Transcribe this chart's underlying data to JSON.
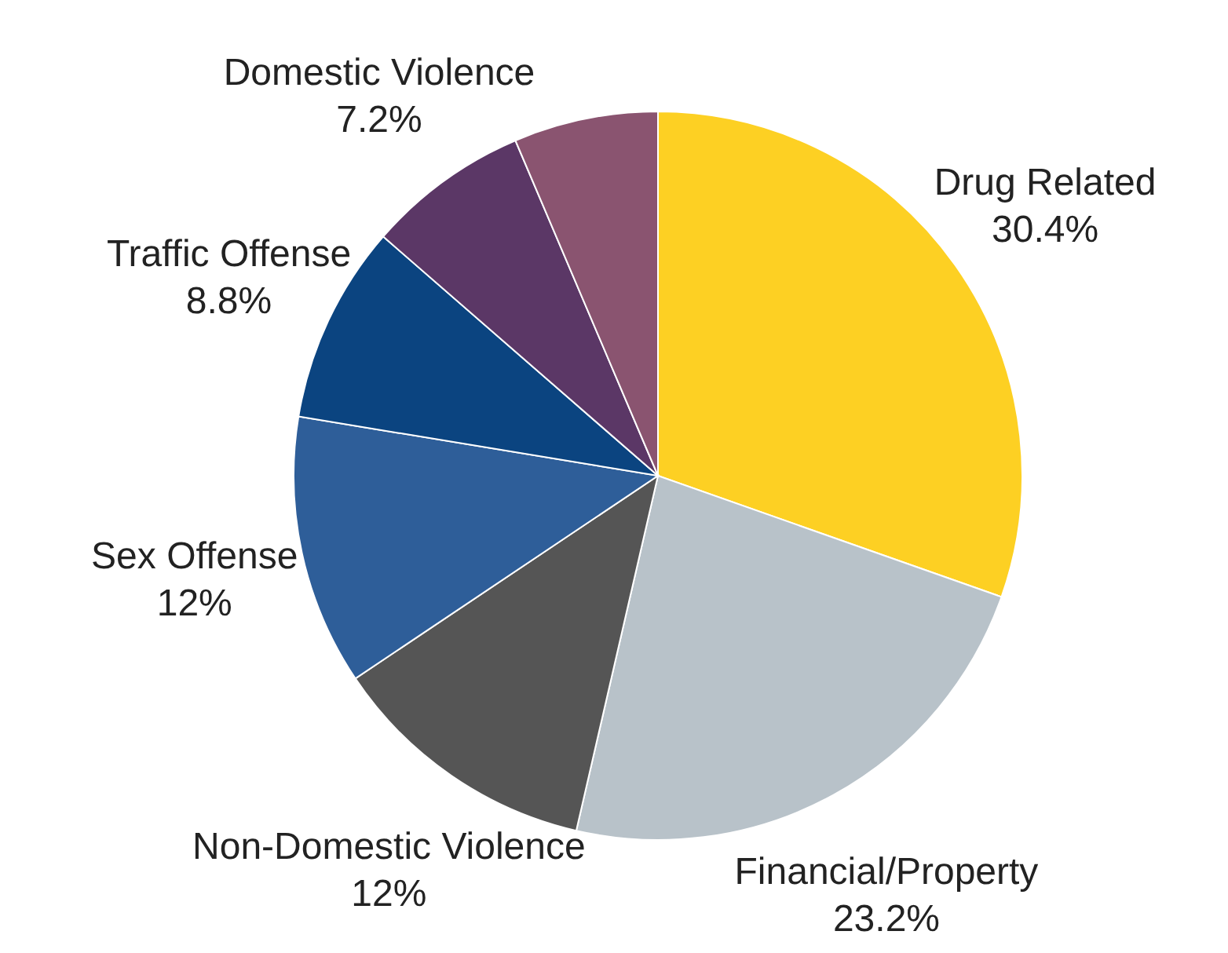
{
  "chart_data": {
    "type": "pie",
    "categories": [
      "Drug Related",
      "Financial/Property",
      "Non-Domestic Violence",
      "Sex Offense",
      "Traffic Offense",
      "Domestic Violence",
      null
    ],
    "values": [
      30.4,
      23.2,
      12,
      12,
      8.8,
      7.2,
      6.4
    ],
    "value_labels": [
      "30.4%",
      "23.2%",
      "12%",
      "12%",
      "8.8%",
      "7.2%",
      null
    ],
    "colors": [
      "#fdd023",
      "#b8c2c9",
      "#555555",
      "#2e5e99",
      "#0b4480",
      "#5b3766",
      "#8a5470"
    ]
  }
}
